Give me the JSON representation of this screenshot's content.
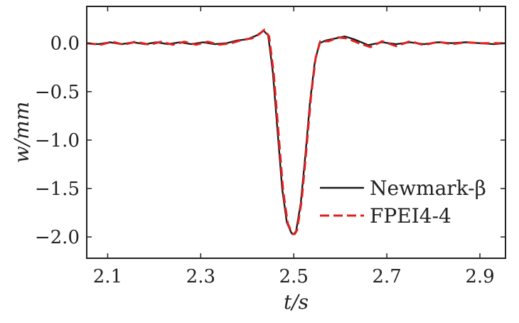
{
  "chart_data": {
    "type": "line",
    "title": "",
    "xlabel": "t/s",
    "ylabel": "w/mm",
    "xlim": [
      2.055,
      2.955
    ],
    "ylim": [
      -2.22,
      0.38
    ],
    "xticks": [
      2.1,
      2.3,
      2.5,
      2.7,
      2.9
    ],
    "xtick_labels": [
      "2.1",
      "2.3",
      "2.5",
      "2.7",
      "2.9"
    ],
    "yticks": [
      0.0,
      -0.5,
      -1.0,
      -1.5,
      -2.0
    ],
    "ytick_labels": [
      "0.0",
      "−0.5",
      "−1.0",
      "−1.5",
      "−2.0"
    ],
    "grid": false,
    "legend_position": "lower-right",
    "series": [
      {
        "name": "Newmark-β",
        "color": "#1a1a1a",
        "dash": "solid",
        "x": [
          2.055,
          2.08,
          2.105,
          2.13,
          2.155,
          2.18,
          2.205,
          2.23,
          2.255,
          2.28,
          2.305,
          2.33,
          2.355,
          2.38,
          2.4,
          2.42,
          2.435,
          2.445,
          2.455,
          2.465,
          2.475,
          2.485,
          2.495,
          2.5,
          2.505,
          2.515,
          2.525,
          2.535,
          2.545,
          2.555,
          2.57,
          2.59,
          2.61,
          2.63,
          2.66,
          2.69,
          2.72,
          2.75,
          2.78,
          2.81,
          2.84,
          2.87,
          2.9,
          2.93,
          2.955
        ],
        "y": [
          0.0,
          -0.01,
          0.01,
          -0.01,
          0.01,
          -0.01,
          0.01,
          -0.01,
          0.01,
          -0.01,
          0.01,
          -0.01,
          0.0,
          0.03,
          0.04,
          0.08,
          0.13,
          0.08,
          -0.3,
          -0.9,
          -1.5,
          -1.85,
          -1.96,
          -1.97,
          -1.94,
          -1.65,
          -1.15,
          -0.6,
          -0.2,
          0.0,
          0.03,
          0.05,
          0.07,
          0.04,
          -0.02,
          0.01,
          -0.01,
          0.01,
          -0.01,
          0.01,
          0.0,
          0.01,
          0.0,
          -0.01,
          0.0
        ]
      },
      {
        "name": "FPEI4-4",
        "color": "#e02020",
        "dash": "dashed",
        "x": [
          2.055,
          2.085,
          2.11,
          2.135,
          2.16,
          2.19,
          2.215,
          2.24,
          2.265,
          2.29,
          2.315,
          2.34,
          2.365,
          2.39,
          2.41,
          2.425,
          2.437,
          2.447,
          2.457,
          2.467,
          2.477,
          2.487,
          2.497,
          2.502,
          2.507,
          2.517,
          2.527,
          2.537,
          2.547,
          2.557,
          2.575,
          2.595,
          2.615,
          2.64,
          2.665,
          2.69,
          2.72,
          2.75,
          2.78,
          2.81,
          2.84,
          2.87,
          2.9,
          2.93,
          2.955
        ],
        "y": [
          0.0,
          -0.015,
          0.015,
          -0.015,
          0.015,
          -0.015,
          0.015,
          -0.015,
          0.015,
          -0.015,
          0.015,
          -0.015,
          0.0,
          0.035,
          0.05,
          0.09,
          0.14,
          0.07,
          -0.32,
          -0.92,
          -1.52,
          -1.86,
          -1.97,
          -1.97,
          -1.93,
          -1.62,
          -1.1,
          -0.55,
          -0.15,
          0.02,
          0.02,
          0.06,
          0.05,
          0.0,
          -0.04,
          0.02,
          -0.03,
          0.02,
          -0.02,
          0.015,
          -0.01,
          0.01,
          0.0,
          0.0,
          0.0
        ]
      }
    ]
  }
}
